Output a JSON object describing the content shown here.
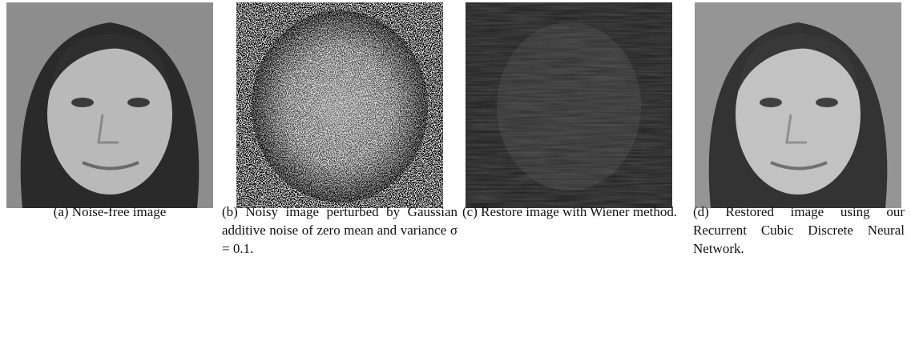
{
  "figure": {
    "panels": [
      {
        "label": "(a)",
        "caption": "Noise-free image"
      },
      {
        "label": "(b)",
        "caption": "Noisy image perturbed by Gaussian additive noise of zero mean and variance σ = 0.1."
      },
      {
        "label": "(c)",
        "caption": "Restore image with Wiener method."
      },
      {
        "label": "(d)",
        "caption": "Restored image using our Recurrent Cubic Discrete Neural Network."
      }
    ]
  }
}
